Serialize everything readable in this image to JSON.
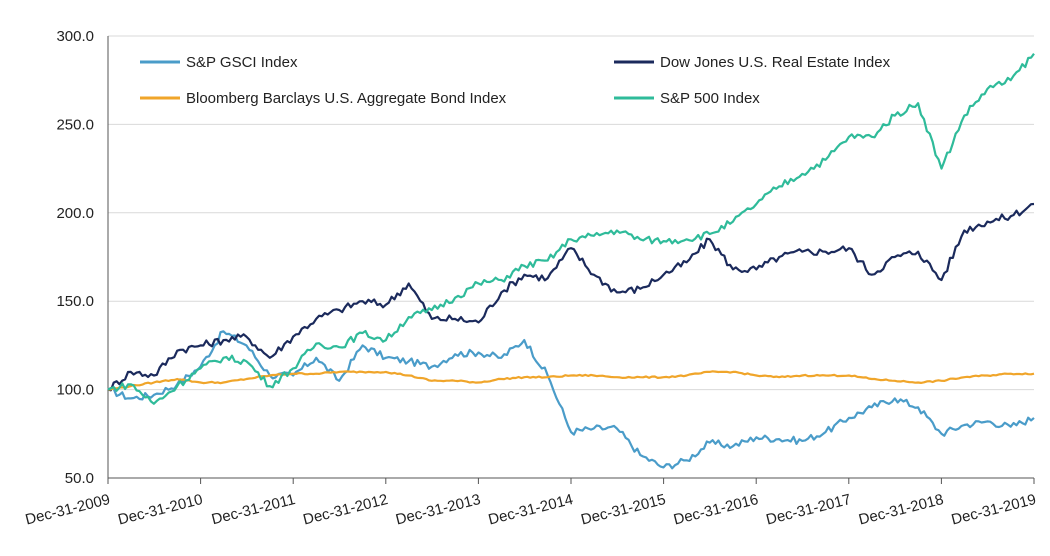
{
  "chart_data": {
    "type": "line",
    "title": "",
    "xlabel": "",
    "ylabel": "",
    "ylim": [
      50,
      300
    ],
    "y_ticks": [
      "50.0",
      "100.0",
      "150.0",
      "200.0",
      "250.0",
      "300.0"
    ],
    "x_ticks": [
      "Dec-31-2009",
      "Dec-31-2010",
      "Dec-31-2011",
      "Dec-31-2012",
      "Dec-31-2013",
      "Dec-31-2014",
      "Dec-31-2015",
      "Dec-31-2016",
      "Dec-31-2017",
      "Dec-31-2018",
      "Dec-31-2019"
    ],
    "grid": "horizontal",
    "legend_position": "top",
    "x_dates": [
      "2009-12-31",
      "2010-03-31",
      "2010-06-30",
      "2010-09-30",
      "2010-12-31",
      "2011-03-31",
      "2011-06-30",
      "2011-09-30",
      "2011-12-31",
      "2012-03-31",
      "2012-06-30",
      "2012-09-30",
      "2012-12-31",
      "2013-03-31",
      "2013-06-30",
      "2013-09-30",
      "2013-12-31",
      "2014-03-31",
      "2014-06-30",
      "2014-09-30",
      "2014-12-31",
      "2015-03-31",
      "2015-06-30",
      "2015-09-30",
      "2015-12-31",
      "2016-03-31",
      "2016-06-30",
      "2016-09-30",
      "2016-12-31",
      "2017-03-31",
      "2017-06-30",
      "2017-09-30",
      "2017-12-31",
      "2018-03-31",
      "2018-06-30",
      "2018-09-30",
      "2018-12-31",
      "2019-03-31",
      "2019-06-30",
      "2019-09-30",
      "2019-12-31"
    ],
    "series": [
      {
        "name": "S&P GSCI Index",
        "color": "#4a9cc9",
        "values": [
          100,
          95,
          97,
          103,
          113,
          133,
          125,
          108,
          108,
          118,
          105,
          125,
          118,
          116,
          113,
          120,
          121,
          118,
          128,
          108,
          76,
          78,
          78,
          63,
          56,
          60,
          70,
          68,
          73,
          72,
          71,
          76,
          84,
          90,
          95,
          90,
          75,
          80,
          82,
          79,
          84
        ]
      },
      {
        "name": "Dow Jones U.S. Real Estate Index",
        "color": "#1b2a5c",
        "values": [
          100,
          110,
          108,
          122,
          125,
          128,
          130,
          118,
          130,
          140,
          145,
          150,
          148,
          160,
          140,
          140,
          138,
          155,
          165,
          163,
          180,
          165,
          155,
          157,
          165,
          172,
          185,
          168,
          168,
          175,
          178,
          178,
          180,
          165,
          175,
          178,
          162,
          190,
          195,
          198,
          205
        ]
      },
      {
        "name": "Bloomberg Barclays U.S. Aggregate Bond Index",
        "color": "#f0a52a",
        "values": [
          100,
          102,
          104,
          106,
          104,
          104,
          106,
          108,
          109,
          109,
          110,
          110,
          110,
          108,
          105,
          105,
          104,
          106,
          107,
          107,
          108,
          108,
          107,
          107,
          107,
          108,
          110,
          110,
          108,
          107,
          108,
          108,
          108,
          106,
          105,
          104,
          105,
          107,
          108,
          109,
          109
        ]
      },
      {
        "name": "S&P 500 Index",
        "color": "#2fbb9a",
        "values": [
          100,
          103,
          92,
          102,
          112,
          118,
          116,
          102,
          112,
          126,
          124,
          132,
          128,
          141,
          145,
          152,
          160,
          162,
          170,
          173,
          185,
          187,
          190,
          185,
          184,
          185,
          188,
          195,
          205,
          215,
          222,
          230,
          243,
          243,
          255,
          262,
          225,
          255,
          270,
          275,
          290
        ]
      }
    ]
  }
}
